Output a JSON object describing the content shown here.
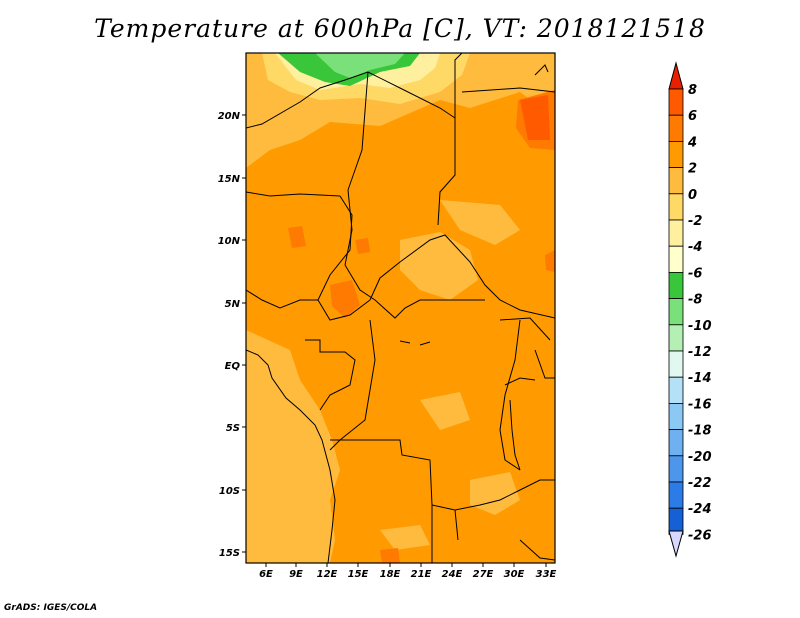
{
  "title": "Temperature at 600hPa [C], VT: 2018121518",
  "credit": "GrADS: IGES/COLA",
  "lon_labels": [
    "6E",
    "9E",
    "12E",
    "15E",
    "18E",
    "21E",
    "24E",
    "27E",
    "30E",
    "33E"
  ],
  "lat_labels": [
    "20N",
    "15N",
    "10N",
    "5N",
    "EQ",
    "5S",
    "10S",
    "15S"
  ],
  "colorbar": {
    "labels": [
      "8",
      "6",
      "4",
      "2",
      "0",
      "-2",
      "-4",
      "-6",
      "-8",
      "-10",
      "-12",
      "-14",
      "-16",
      "-18",
      "-20",
      "-22",
      "-24",
      "-26"
    ],
    "colors": [
      "#ff2000",
      "#ff5a00",
      "#ff7a00",
      "#ff9b00",
      "#ffbb3d",
      "#ffd966",
      "#fff0a0",
      "#ffffcc",
      "#3ac63a",
      "#7ae07a",
      "#b4f0b4",
      "#e0f8f0",
      "#b4e0f8",
      "#8cc8f4",
      "#6eb0f0",
      "#4c96ec",
      "#2c7ce8",
      "#1460d4",
      "#0a3ea8",
      "#0a1a6c"
    ],
    "over_color": "#e82000",
    "under_color": "#d8d8ff"
  },
  "chart_data": {
    "type": "heatmap",
    "title": "Temperature at 600hPa [C], VT: 2018121518",
    "variable": "Temperature at 600hPa",
    "units": "C",
    "valid_time": "2018121518",
    "lon_range": [
      3.5,
      33.5
    ],
    "lat_range": [
      -16,
      24.5
    ],
    "levels": [
      -26,
      -24,
      -22,
      -20,
      -18,
      -16,
      -14,
      -12,
      -10,
      -8,
      -6,
      -4,
      -2,
      0,
      2,
      4,
      6,
      8
    ],
    "dominant_range": [
      2,
      4
    ],
    "regions": [
      {
        "area": "northern edge ~24N, 8-14E",
        "range": [
          -8,
          -4
        ]
      },
      {
        "area": "north ~21-24N",
        "range": [
          -4,
          0
        ]
      },
      {
        "area": "northeast ~17-21N, 30-33E",
        "range": [
          4,
          6
        ]
      },
      {
        "area": "central Congo basin",
        "range": [
          2,
          4
        ]
      },
      {
        "area": "Atlantic coast south of equator",
        "range": [
          0,
          2
        ]
      }
    ]
  }
}
